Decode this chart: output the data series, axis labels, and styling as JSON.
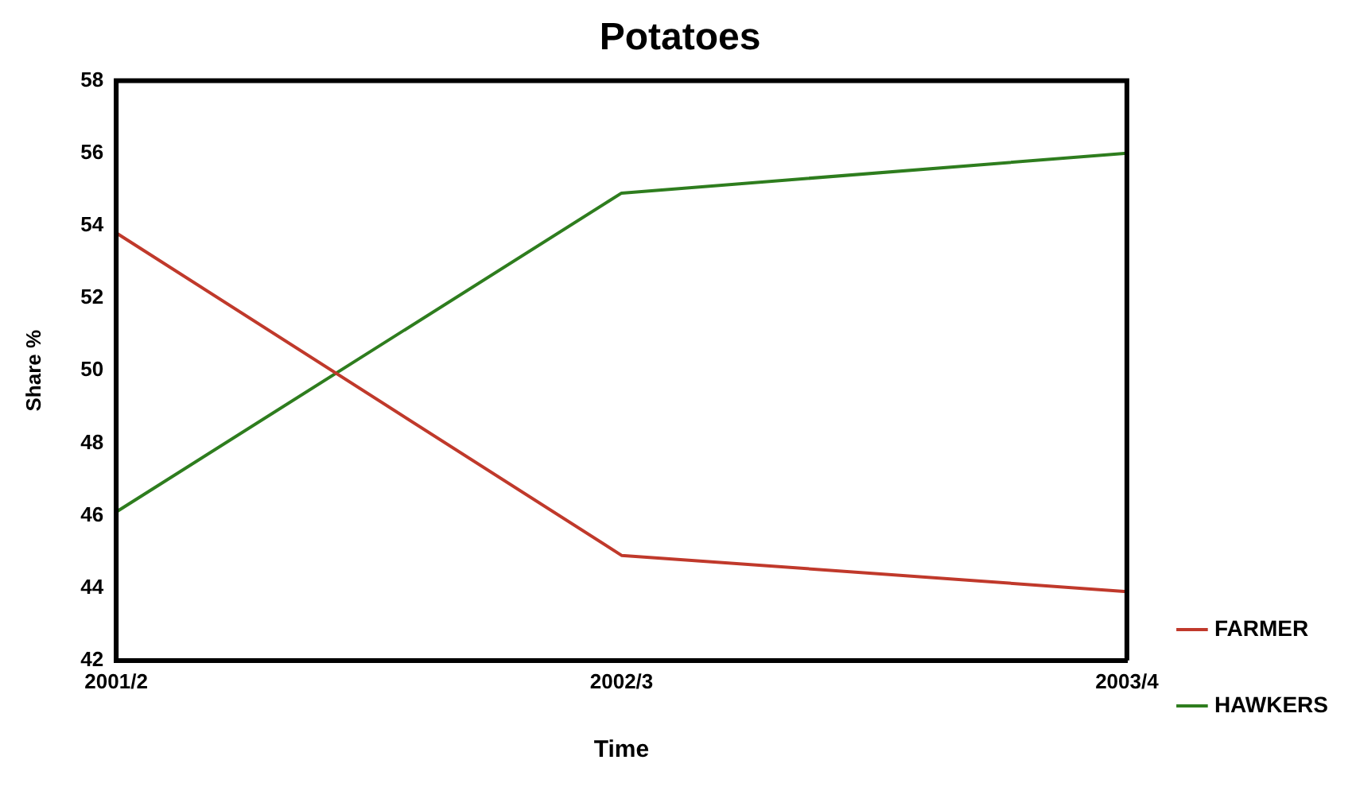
{
  "chart_data": {
    "type": "line",
    "title": "Potatoes",
    "xlabel": "Time",
    "ylabel": "Share %",
    "categories": [
      "2001/2",
      "2002/3",
      "2003/4"
    ],
    "series": [
      {
        "name": "FARMER",
        "color": "#c0392b",
        "values": [
          53.8,
          44.9,
          43.9
        ]
      },
      {
        "name": "HAWKERS",
        "color": "#2e7d1e",
        "values": [
          46.1,
          54.9,
          56.0
        ]
      }
    ],
    "ylim": [
      42,
      58
    ],
    "yticks": [
      42,
      44,
      46,
      48,
      50,
      52,
      54,
      56,
      58
    ],
    "grid": false,
    "legend": "bottom right",
    "marker": "none",
    "line_style": "solid"
  }
}
